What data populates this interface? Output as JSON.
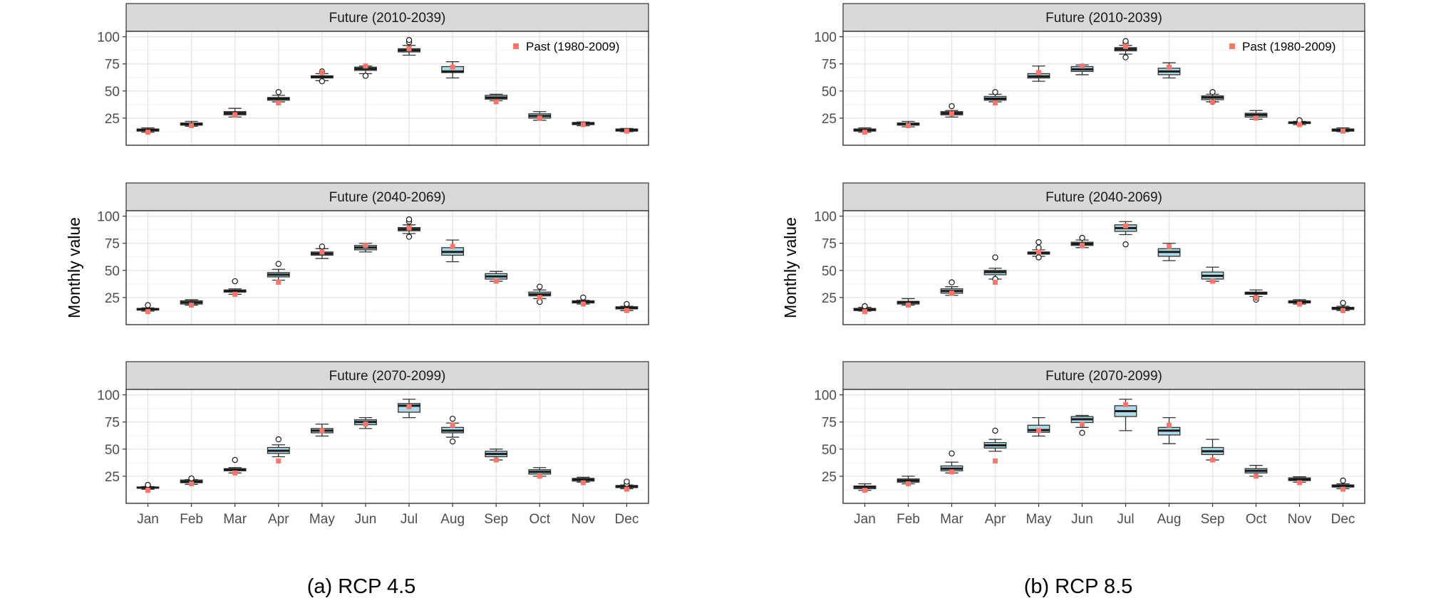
{
  "chart_data": [
    {
      "type": "boxplot",
      "caption": "(a) RCP 4.5",
      "ylabel": "Monthly value",
      "categories": [
        "Jan",
        "Feb",
        "Mar",
        "Apr",
        "May",
        "Jun",
        "Jul",
        "Aug",
        "Sep",
        "Oct",
        "Nov",
        "Dec"
      ],
      "ylim": [
        0,
        105
      ],
      "yticks": [
        25,
        50,
        75,
        100
      ],
      "legend": {
        "label": "Past (1980-2009)",
        "position": "top-right"
      },
      "past": [
        12,
        18,
        28,
        39,
        67,
        73,
        89,
        72,
        40,
        25,
        19,
        13
      ],
      "panels": [
        {
          "title": "Future (2010-2039)",
          "boxes": [
            {
              "min": 12,
              "q1": 13,
              "median": 14,
              "q3": 15,
              "max": 16,
              "outliers": []
            },
            {
              "min": 17.5,
              "q1": 18.5,
              "median": 19.5,
              "q3": 20.5,
              "max": 22,
              "outliers": []
            },
            {
              "min": 26,
              "q1": 28,
              "median": 29.5,
              "q3": 31,
              "max": 34,
              "outliers": []
            },
            {
              "min": 40,
              "q1": 41.5,
              "median": 43,
              "q3": 44,
              "max": 46,
              "outliers": [
                49
              ]
            },
            {
              "min": 59.5,
              "q1": 62,
              "median": 63,
              "q3": 64,
              "max": 66,
              "outliers": [
                59,
                68
              ]
            },
            {
              "min": 66,
              "q1": 69,
              "median": 70.5,
              "q3": 72,
              "max": 73,
              "outliers": [
                64
              ]
            },
            {
              "min": 83,
              "q1": 86,
              "median": 87.5,
              "q3": 89,
              "max": 92,
              "outliers": [
                95,
                97
              ]
            },
            {
              "min": 62,
              "q1": 67,
              "median": 68,
              "q3": 72.5,
              "max": 77,
              "outliers": []
            },
            {
              "min": 41,
              "q1": 42.5,
              "median": 44,
              "q3": 46,
              "max": 47,
              "outliers": []
            },
            {
              "min": 23,
              "q1": 25,
              "median": 27,
              "q3": 29,
              "max": 31,
              "outliers": []
            },
            {
              "min": 18,
              "q1": 19,
              "median": 20,
              "q3": 21,
              "max": 21.5,
              "outliers": []
            },
            {
              "min": 12.5,
              "q1": 13,
              "median": 14,
              "q3": 15,
              "max": 15.5,
              "outliers": []
            }
          ]
        },
        {
          "title": "Future (2040-2069)",
          "boxes": [
            {
              "min": 12.5,
              "q1": 13.5,
              "median": 14,
              "q3": 15,
              "max": 15.5,
              "outliers": [
                18
              ]
            },
            {
              "min": 18,
              "q1": 19,
              "median": 20.5,
              "q3": 22,
              "max": 23,
              "outliers": []
            },
            {
              "min": 28,
              "q1": 30,
              "median": 31,
              "q3": 32,
              "max": 33,
              "outliers": [
                40
              ]
            },
            {
              "min": 41,
              "q1": 44,
              "median": 46,
              "q3": 48,
              "max": 51,
              "outliers": [
                56
              ]
            },
            {
              "min": 61,
              "q1": 64,
              "median": 65.5,
              "q3": 67,
              "max": 70,
              "outliers": [
                72
              ]
            },
            {
              "min": 67,
              "q1": 69,
              "median": 71,
              "q3": 73,
              "max": 75,
              "outliers": []
            },
            {
              "min": 84,
              "q1": 86.5,
              "median": 88,
              "q3": 89.5,
              "max": 92,
              "outliers": [
                81,
                95,
                97
              ]
            },
            {
              "min": 58,
              "q1": 64,
              "median": 67,
              "q3": 71,
              "max": 78,
              "outliers": []
            },
            {
              "min": 40,
              "q1": 42,
              "median": 44.5,
              "q3": 47,
              "max": 49,
              "outliers": []
            },
            {
              "min": 24,
              "q1": 26.5,
              "median": 28,
              "q3": 30,
              "max": 32,
              "outliers": [
                21,
                35
              ]
            },
            {
              "min": 19,
              "q1": 20,
              "median": 21,
              "q3": 22,
              "max": 22.5,
              "outliers": [
                25
              ]
            },
            {
              "min": 13,
              "q1": 14.5,
              "median": 15.5,
              "q3": 16.5,
              "max": 17,
              "outliers": [
                19
              ]
            }
          ]
        },
        {
          "title": "Future (2070-2099)",
          "boxes": [
            {
              "min": 13,
              "q1": 14,
              "median": 14.5,
              "q3": 15,
              "max": 15.5,
              "outliers": [
                16,
                17
              ]
            },
            {
              "min": 17.5,
              "q1": 19,
              "median": 20,
              "q3": 21.5,
              "max": 22,
              "outliers": [
                23
              ]
            },
            {
              "min": 28,
              "q1": 30,
              "median": 31,
              "q3": 32,
              "max": 33,
              "outliers": [
                40
              ]
            },
            {
              "min": 43,
              "q1": 46,
              "median": 48.5,
              "q3": 51.5,
              "max": 54,
              "outliers": [
                59
              ]
            },
            {
              "min": 62,
              "q1": 65,
              "median": 67,
              "q3": 69,
              "max": 73,
              "outliers": []
            },
            {
              "min": 69,
              "q1": 72.5,
              "median": 75,
              "q3": 77,
              "max": 79,
              "outliers": []
            },
            {
              "min": 79,
              "q1": 84,
              "median": 90,
              "q3": 92,
              "max": 96,
              "outliers": []
            },
            {
              "min": 61,
              "q1": 65,
              "median": 67,
              "q3": 70,
              "max": 74,
              "outliers": [
                57,
                78
              ]
            },
            {
              "min": 40,
              "q1": 43,
              "median": 45.5,
              "q3": 48,
              "max": 50,
              "outliers": []
            },
            {
              "min": 25,
              "q1": 27,
              "median": 29,
              "q3": 31,
              "max": 33,
              "outliers": []
            },
            {
              "min": 19.5,
              "q1": 20.5,
              "median": 22,
              "q3": 23,
              "max": 24,
              "outliers": []
            },
            {
              "min": 13.5,
              "q1": 14.5,
              "median": 15.5,
              "q3": 16.5,
              "max": 17,
              "outliers": [
                18,
                20
              ]
            }
          ]
        }
      ]
    },
    {
      "type": "boxplot",
      "caption": "(b) RCP 8.5",
      "ylabel": "Monthly value",
      "categories": [
        "Jan",
        "Feb",
        "Mar",
        "Apr",
        "May",
        "Jun",
        "Jul",
        "Aug",
        "Sep",
        "Oct",
        "Nov",
        "Dec"
      ],
      "ylim": [
        0,
        105
      ],
      "yticks": [
        25,
        50,
        75,
        100
      ],
      "legend": {
        "label": "Past (1980-2009)",
        "position": "top-right"
      },
      "past": [
        12,
        18,
        29,
        39,
        67,
        73,
        91,
        72,
        40,
        25,
        19,
        13
      ],
      "panels": [
        {
          "title": "Future (2010-2039)",
          "boxes": [
            {
              "min": 12,
              "q1": 13,
              "median": 14,
              "q3": 15,
              "max": 16,
              "outliers": []
            },
            {
              "min": 17,
              "q1": 18.5,
              "median": 19.5,
              "q3": 20.5,
              "max": 22,
              "outliers": []
            },
            {
              "min": 26,
              "q1": 28,
              "median": 29.5,
              "q3": 31,
              "max": 32,
              "outliers": [
                36
              ]
            },
            {
              "min": 40,
              "q1": 41.5,
              "median": 43,
              "q3": 45,
              "max": 47,
              "outliers": [
                49
              ]
            },
            {
              "min": 59,
              "q1": 62,
              "median": 63.5,
              "q3": 66,
              "max": 73,
              "outliers": []
            },
            {
              "min": 65,
              "q1": 68,
              "median": 70,
              "q3": 72.5,
              "max": 74,
              "outliers": []
            },
            {
              "min": 84,
              "q1": 87,
              "median": 88.5,
              "q3": 90,
              "max": 92,
              "outliers": [
                81,
                94,
                96
              ]
            },
            {
              "min": 62,
              "q1": 65,
              "median": 68,
              "q3": 71,
              "max": 76,
              "outliers": []
            },
            {
              "min": 40,
              "q1": 42,
              "median": 44,
              "q3": 45.5,
              "max": 47,
              "outliers": [
                40,
                49
              ]
            },
            {
              "min": 24,
              "q1": 26,
              "median": 28,
              "q3": 29.5,
              "max": 32,
              "outliers": []
            },
            {
              "min": 19,
              "q1": 20,
              "median": 21,
              "q3": 21.5,
              "max": 22,
              "outliers": [
                23
              ]
            },
            {
              "min": 12.5,
              "q1": 13,
              "median": 14,
              "q3": 15,
              "max": 16,
              "outliers": []
            }
          ]
        },
        {
          "title": "Future (2040-2069)",
          "boxes": [
            {
              "min": 12.5,
              "q1": 13,
              "median": 14,
              "q3": 15,
              "max": 16,
              "outliers": [
                17
              ]
            },
            {
              "min": 18,
              "q1": 19,
              "median": 20.5,
              "q3": 21.5,
              "max": 24,
              "outliers": []
            },
            {
              "min": 27,
              "q1": 29,
              "median": 31,
              "q3": 33,
              "max": 35,
              "outliers": [
                39
              ]
            },
            {
              "min": 42,
              "q1": 46,
              "median": 48.5,
              "q3": 50,
              "max": 52,
              "outliers": [
                42,
                62
              ]
            },
            {
              "min": 63,
              "q1": 65,
              "median": 66,
              "q3": 67,
              "max": 69,
              "outliers": [
                62,
                71,
                76
              ]
            },
            {
              "min": 71,
              "q1": 73,
              "median": 74.5,
              "q3": 76,
              "max": 78,
              "outliers": [
                80
              ]
            },
            {
              "min": 83,
              "q1": 86,
              "median": 89,
              "q3": 92,
              "max": 95,
              "outliers": [
                74
              ]
            },
            {
              "min": 59,
              "q1": 63,
              "median": 67,
              "q3": 70,
              "max": 75,
              "outliers": []
            },
            {
              "min": 40,
              "q1": 42,
              "median": 45,
              "q3": 48.5,
              "max": 53,
              "outliers": []
            },
            {
              "min": 26,
              "q1": 28,
              "median": 29,
              "q3": 30,
              "max": 32,
              "outliers": [
                23,
                25
              ]
            },
            {
              "min": 19,
              "q1": 20,
              "median": 21,
              "q3": 22,
              "max": 23,
              "outliers": []
            },
            {
              "min": 13,
              "q1": 14,
              "median": 15,
              "q3": 16,
              "max": 17,
              "outliers": [
                20
              ]
            }
          ]
        },
        {
          "title": "Future (2070-2099)",
          "boxes": [
            {
              "min": 12,
              "q1": 13.5,
              "median": 15,
              "q3": 16,
              "max": 18,
              "outliers": []
            },
            {
              "min": 18,
              "q1": 19.5,
              "median": 21,
              "q3": 22.5,
              "max": 25,
              "outliers": []
            },
            {
              "min": 28,
              "q1": 30,
              "median": 32,
              "q3": 34.5,
              "max": 38,
              "outliers": [
                46
              ]
            },
            {
              "min": 48,
              "q1": 51,
              "median": 53.5,
              "q3": 56,
              "max": 59,
              "outliers": [
                67
              ]
            },
            {
              "min": 62,
              "q1": 65.5,
              "median": 67.5,
              "q3": 72,
              "max": 79,
              "outliers": []
            },
            {
              "min": 70,
              "q1": 74.5,
              "median": 77.5,
              "q3": 80,
              "max": 81,
              "outliers": [
                65
              ]
            },
            {
              "min": 67,
              "q1": 80,
              "median": 85,
              "q3": 90,
              "max": 96,
              "outliers": []
            },
            {
              "min": 55,
              "q1": 63,
              "median": 67,
              "q3": 70,
              "max": 79,
              "outliers": []
            },
            {
              "min": 40,
              "q1": 45,
              "median": 48,
              "q3": 51.5,
              "max": 59,
              "outliers": []
            },
            {
              "min": 25,
              "q1": 28,
              "median": 30,
              "q3": 32,
              "max": 35,
              "outliers": []
            },
            {
              "min": 19.5,
              "q1": 21,
              "median": 22,
              "q3": 23.5,
              "max": 24.5,
              "outliers": []
            },
            {
              "min": 13.5,
              "q1": 15,
              "median": 16,
              "q3": 17,
              "max": 18,
              "outliers": [
                21
              ]
            }
          ]
        }
      ]
    }
  ]
}
